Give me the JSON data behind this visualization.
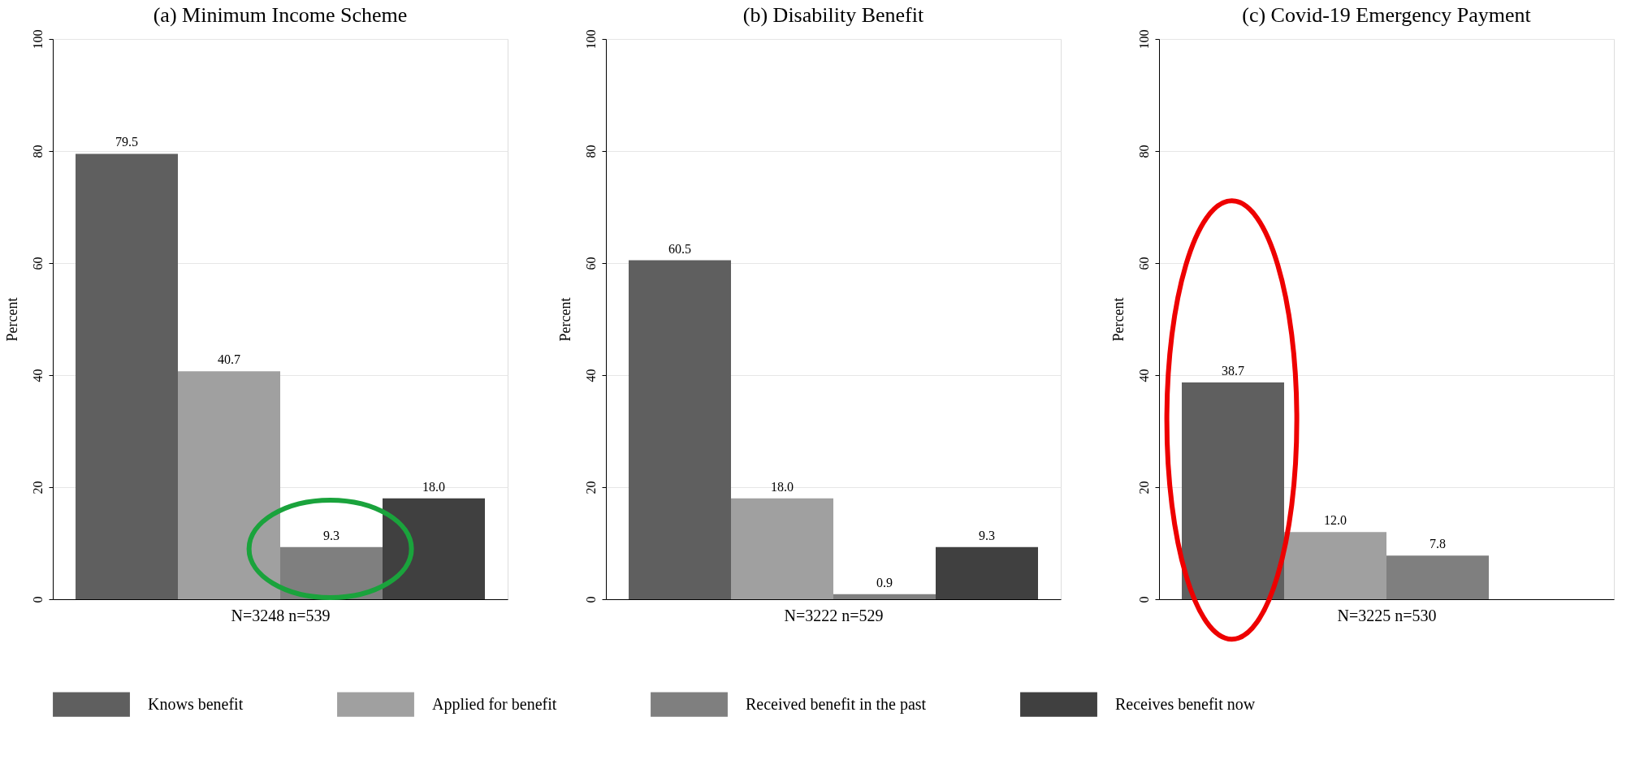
{
  "chart_data": [
    {
      "type": "bar",
      "title": "(a) Minimum Income Scheme",
      "xlabel": "N=3248 n=539",
      "ylabel": "Percent",
      "categories": [
        null
      ],
      "ylim": [
        0,
        100
      ],
      "yticks": [
        0,
        20,
        40,
        60,
        80,
        100
      ],
      "grid": "y",
      "data_labels": true,
      "legend": "bottom",
      "series": [
        {
          "name": "Knows benefit",
          "color": "#5f5f5f",
          "values": [
            79.5
          ]
        },
        {
          "name": "Applied for benefit",
          "color": "#a0a0a0",
          "values": [
            40.7
          ]
        },
        {
          "name": "Received benefit in the past",
          "color": "#7f7f7f",
          "values": [
            9.3
          ]
        },
        {
          "name": "Receives benefit now",
          "color": "#404040",
          "values": [
            18.0
          ],
          "value_labels": [
            "18.0"
          ]
        }
      ]
    },
    {
      "type": "bar",
      "title": "(b) Disability Benefit",
      "xlabel": "N=3222 n=529",
      "ylabel": "Percent",
      "categories": [
        null
      ],
      "ylim": [
        0,
        100
      ],
      "yticks": [
        0,
        20,
        40,
        60,
        80,
        100
      ],
      "grid": "y",
      "data_labels": true,
      "legend": "bottom",
      "series": [
        {
          "name": "Knows benefit",
          "color": "#5f5f5f",
          "values": [
            60.5
          ]
        },
        {
          "name": "Applied for benefit",
          "color": "#a0a0a0",
          "values": [
            18.0
          ],
          "value_labels": [
            "18.0"
          ]
        },
        {
          "name": "Received benefit in the past",
          "color": "#7f7f7f",
          "values": [
            0.9
          ]
        },
        {
          "name": "Receives benefit now",
          "color": "#404040",
          "values": [
            9.3
          ]
        }
      ]
    },
    {
      "type": "bar",
      "title": "(c) Covid-19 Emergency Payment",
      "xlabel": "N=3225 n=530",
      "ylabel": "Percent",
      "categories": [
        null
      ],
      "ylim": [
        0,
        100
      ],
      "yticks": [
        0,
        20,
        40,
        60,
        80,
        100
      ],
      "grid": "y",
      "data_labels": true,
      "legend": "bottom",
      "series": [
        {
          "name": "Knows benefit",
          "color": "#5f5f5f",
          "values": [
            38.7
          ]
        },
        {
          "name": "Applied for benefit",
          "color": "#a0a0a0",
          "values": [
            12.0
          ],
          "value_labels": [
            "12.0"
          ]
        },
        {
          "name": "Received benefit in the past",
          "color": "#7f7f7f",
          "values": [
            7.8
          ]
        }
      ]
    }
  ]
}
